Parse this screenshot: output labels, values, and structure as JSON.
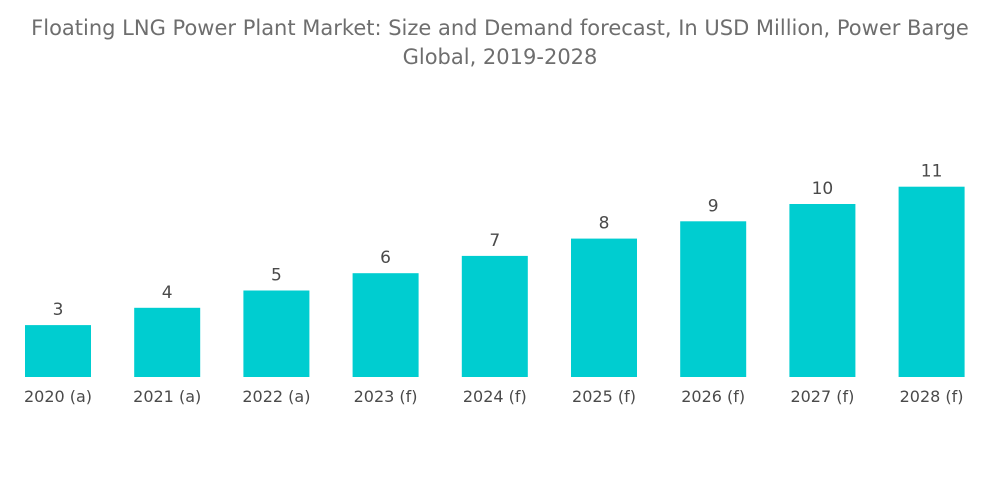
{
  "chart_data": {
    "type": "bar",
    "title": "Floating LNG Power Plant Market: Size and Demand forecast, In USD Million, Power Barge",
    "subtitle": "Global, 2019-2028",
    "categories": [
      "2020 (a)",
      "2021 (a)",
      "2022 (a)",
      "2023 (f)",
      "2024 (f)",
      "2025 (f)",
      "2026 (f)",
      "2027 (f)",
      "2028 (f)"
    ],
    "values": [
      3,
      4,
      5,
      6,
      7,
      8,
      9,
      10,
      11
    ],
    "value_labels": [
      "3",
      "4",
      "5",
      "6",
      "7",
      "8",
      "9",
      "10",
      "11"
    ],
    "xlabel": "",
    "ylabel": "",
    "ylim": [
      0,
      11
    ],
    "grid": false,
    "bar_color": "#00cdd0"
  }
}
